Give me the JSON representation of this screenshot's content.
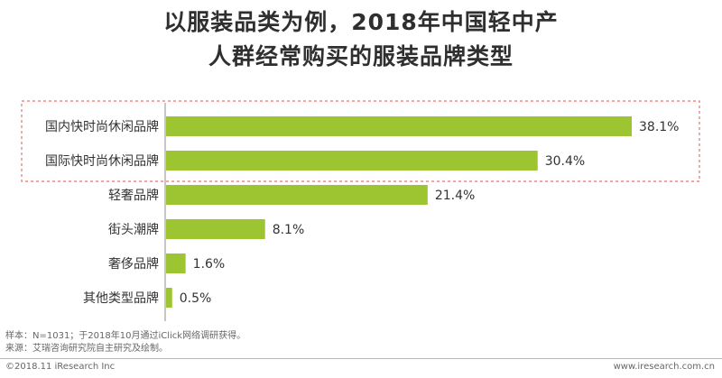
{
  "chart_data": {
    "type": "bar",
    "orientation": "horizontal",
    "title_lines": [
      "以服装品类为例，2018年中国轻中产",
      "人群经常购买的服装品牌类型"
    ],
    "categories": [
      "国内快时尚休闲品牌",
      "国际快时尚休闲品牌",
      "轻奢品牌",
      "街头潮牌",
      "奢侈品牌",
      "其他类型品牌"
    ],
    "values": [
      38.1,
      30.4,
      21.4,
      8.1,
      1.6,
      0.5
    ],
    "value_labels": [
      "38.1%",
      "30.4%",
      "21.4%",
      "8.1%",
      "1.6%",
      "0.5%"
    ],
    "unit": "%",
    "xlim": [
      0,
      40
    ],
    "bar_color": "#9dc431",
    "highlight_color": "#e57373",
    "highlighted_categories": [
      "国内快时尚休闲品牌",
      "国际快时尚休闲品牌"
    ],
    "grid": false,
    "legend": "none"
  },
  "notes": {
    "sample": "样本：N=1031；于2018年10月通过iClick网络调研获得。",
    "source": "来源：艾瑞咨询研究院自主研究及绘制。"
  },
  "footer": {
    "copyright": "©2018.11 iResearch Inc",
    "url": "www.iresearch.com.cn"
  }
}
